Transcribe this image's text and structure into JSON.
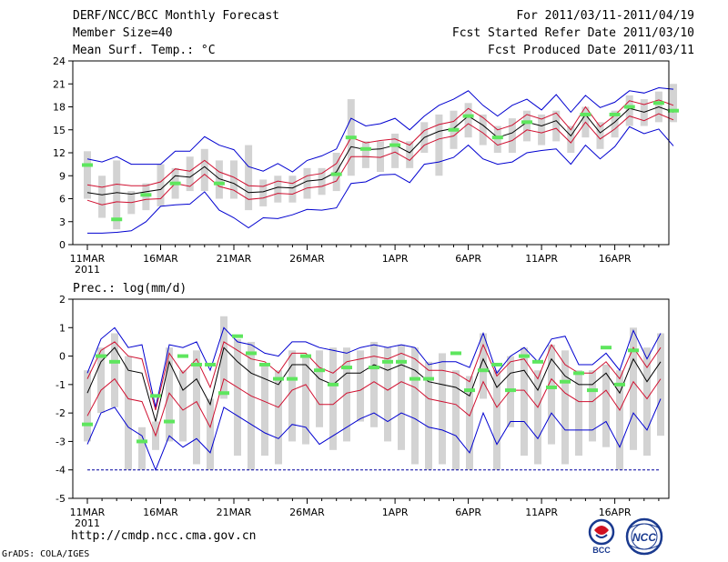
{
  "header": {
    "title": "DERF/NCC/BCC Monthly Forecast",
    "member_size": "Member Size=40",
    "period": "For 2011/03/11-2011/04/19",
    "fcst_started": "Fcst Started Refer Date 2011/03/10",
    "fcst_produced": "Fcst Produced Date 2011/03/11"
  },
  "footer": {
    "url": "http://cmdp.ncc.cma.gov.cn",
    "grads": "GrADS: COLA/IGES",
    "logo_bcc": "BCC",
    "logo_ncc": "NCC"
  },
  "colors": {
    "mean": "#000000",
    "spread": "#d01030",
    "extreme": "#0000d0",
    "box": "#d3d3d3",
    "obs": "#5ee65e",
    "floor": "#0000a0"
  },
  "chart_data": [
    {
      "type": "line",
      "title": "Mean Surf. Temp.: °C",
      "ylim": [
        0,
        24
      ],
      "yticks": [
        0,
        3,
        6,
        9,
        12,
        15,
        18,
        21,
        24
      ],
      "x_tick_labels": [
        "11MAR",
        "16MAR",
        "21MAR",
        "26MAR",
        "1APR",
        "6APR",
        "11APR",
        "16APR"
      ],
      "x_tick_days": [
        0,
        5,
        10,
        15,
        21,
        26,
        31,
        36
      ],
      "x_year_label": "2011",
      "series": [
        {
          "name": "ensemble mean",
          "values": [
            6.8,
            6.5,
            6.8,
            6.6,
            6.9,
            7.2,
            9.0,
            8.8,
            10.2,
            8.6,
            8.0,
            6.8,
            6.9,
            7.5,
            7.4,
            8.3,
            8.5,
            9.5,
            12.8,
            12.4,
            12.5,
            13.0,
            12.0,
            14.0,
            14.8,
            15.2,
            16.8,
            15.6,
            14.0,
            14.6,
            16.0,
            15.5,
            16.2,
            14.2,
            17.0,
            14.6,
            16.0,
            17.8,
            17.3,
            18.0,
            17.3
          ]
        },
        {
          "name": "upper spread",
          "values": [
            7.8,
            7.5,
            7.9,
            7.7,
            7.7,
            8.2,
            9.9,
            9.6,
            11.0,
            9.5,
            8.8,
            7.7,
            7.6,
            8.3,
            8.0,
            9.0,
            9.3,
            10.6,
            14.0,
            13.3,
            13.6,
            13.8,
            13.0,
            14.9,
            15.7,
            16.1,
            17.8,
            16.6,
            15.0,
            15.6,
            17.0,
            16.4,
            17.2,
            15.0,
            18.0,
            15.4,
            16.9,
            18.8,
            18.3,
            18.9,
            18.2
          ]
        },
        {
          "name": "lower spread",
          "values": [
            5.8,
            5.2,
            5.6,
            5.5,
            5.9,
            6.0,
            8.0,
            7.6,
            9.2,
            7.6,
            7.1,
            5.9,
            6.1,
            6.7,
            6.6,
            7.4,
            7.6,
            8.3,
            11.5,
            11.5,
            11.4,
            12.1,
            11.0,
            13.0,
            13.8,
            14.2,
            15.8,
            14.6,
            13.0,
            13.6,
            15.0,
            14.6,
            15.2,
            13.3,
            16.0,
            13.8,
            15.1,
            16.8,
            16.2,
            17.1,
            16.3
          ]
        },
        {
          "name": "ensemble max",
          "values": [
            11.2,
            10.8,
            11.5,
            10.5,
            10.5,
            10.5,
            12.2,
            12.2,
            14.1,
            13.0,
            12.4,
            10.2,
            9.6,
            10.6,
            9.5,
            11.0,
            11.6,
            12.5,
            16.5,
            15.5,
            15.8,
            16.5,
            15.0,
            16.8,
            18.2,
            19.0,
            20.1,
            18.2,
            16.8,
            18.2,
            19.0,
            17.6,
            19.6,
            17.3,
            19.5,
            17.9,
            18.6,
            20.1,
            19.8,
            20.5,
            20.3
          ]
        },
        {
          "name": "ensemble min",
          "values": [
            1.5,
            1.5,
            1.6,
            1.8,
            3.0,
            5.0,
            5.2,
            5.3,
            6.9,
            4.5,
            3.5,
            2.2,
            3.5,
            3.4,
            3.9,
            4.6,
            4.5,
            4.8,
            8.0,
            8.2,
            9.1,
            9.2,
            8.1,
            10.5,
            10.8,
            11.4,
            13.0,
            11.2,
            10.5,
            10.8,
            12.0,
            12.3,
            12.5,
            10.5,
            13.0,
            11.2,
            12.8,
            15.4,
            14.5,
            15.1,
            12.9
          ]
        },
        {
          "name": "box upper",
          "values": [
            12.2,
            9.0,
            11.0,
            7.0,
            8.0,
            10.5,
            10.0,
            11.5,
            12.5,
            11.0,
            11.0,
            13.0,
            8.5,
            9.0,
            9.0,
            10.0,
            10.0,
            12.0,
            19.0,
            13.5,
            13.5,
            14.5,
            13.5,
            16.0,
            17.0,
            17.5,
            18.5,
            17.0,
            15.5,
            16.5,
            17.5,
            17.0,
            17.5,
            15.5,
            18.0,
            16.0,
            17.5,
            19.5,
            19.0,
            20.0,
            21.0
          ]
        },
        {
          "name": "box lower",
          "values": [
            6.0,
            3.5,
            2.0,
            4.0,
            4.5,
            5.0,
            6.0,
            7.0,
            7.0,
            6.0,
            6.0,
            4.5,
            5.0,
            5.5,
            5.5,
            6.0,
            6.5,
            7.0,
            9.0,
            10.0,
            9.5,
            10.0,
            10.0,
            12.0,
            9.0,
            12.5,
            14.0,
            13.0,
            12.0,
            12.0,
            13.5,
            13.0,
            13.5,
            12.0,
            14.0,
            12.5,
            14.0,
            15.5,
            15.5,
            16.0,
            16.0
          ]
        },
        {
          "name": "observed",
          "values": [
            10.4,
            null,
            3.3,
            null,
            6.5,
            null,
            8.0,
            null,
            null,
            8.0,
            null,
            null,
            null,
            null,
            null,
            null,
            null,
            9.2,
            14.0,
            12.5,
            null,
            13.0,
            null,
            null,
            null,
            15.0,
            16.8,
            null,
            14.0,
            null,
            16.0,
            null,
            null,
            null,
            17.0,
            null,
            17.0,
            18.0,
            null,
            18.5,
            17.5
          ]
        }
      ]
    },
    {
      "type": "line",
      "title": "Prec.: log(mm/d)",
      "ylim": [
        -5,
        2
      ],
      "yticks": [
        -5,
        -4,
        -3,
        -2,
        -1,
        0,
        1,
        2
      ],
      "x_tick_labels": [
        "11MAR",
        "16MAR",
        "21MAR",
        "26MAR",
        "1APR",
        "6APR",
        "11APR",
        "16APR"
      ],
      "x_tick_days": [
        0,
        5,
        10,
        15,
        21,
        26,
        31,
        36
      ],
      "x_year_label": "2011",
      "series": [
        {
          "name": "ensemble mean",
          "values": [
            -1.3,
            -0.2,
            0.3,
            -0.5,
            -0.6,
            -2.3,
            -0.2,
            -1.2,
            -0.8,
            -1.7,
            0.3,
            -0.2,
            -0.6,
            -0.8,
            -1.0,
            -0.3,
            -0.3,
            -0.8,
            -1.0,
            -0.6,
            -0.6,
            -0.3,
            -0.5,
            -0.3,
            -0.5,
            -0.9,
            -1.0,
            -1.1,
            -1.4,
            -0.1,
            -1.1,
            -0.6,
            -0.5,
            -1.2,
            -0.1,
            -0.7,
            -1.0,
            -1.0,
            -0.6,
            -1.3,
            -0.1,
            -0.9,
            -0.2
          ]
        },
        {
          "name": "upper spread",
          "values": [
            -0.8,
            0.2,
            0.5,
            0.0,
            -0.1,
            -1.9,
            0.1,
            -0.6,
            -0.1,
            -1.1,
            0.5,
            0.2,
            -0.1,
            -0.2,
            -0.6,
            0.1,
            0.1,
            -0.4,
            -0.6,
            -0.2,
            -0.1,
            0.0,
            -0.1,
            0.1,
            -0.1,
            -0.5,
            -0.5,
            -0.6,
            -0.9,
            0.4,
            -0.7,
            -0.2,
            -0.1,
            -0.8,
            0.4,
            -0.3,
            -0.6,
            -0.6,
            -0.2,
            -0.8,
            0.3,
            -0.4,
            0.3
          ]
        },
        {
          "name": "lower spread",
          "values": [
            -2.1,
            -1.2,
            -0.8,
            -1.5,
            -1.6,
            -2.8,
            -1.3,
            -1.9,
            -1.6,
            -2.5,
            -0.8,
            -1.1,
            -1.4,
            -1.6,
            -1.8,
            -1.2,
            -1.0,
            -1.7,
            -1.7,
            -1.3,
            -1.2,
            -0.9,
            -1.2,
            -0.9,
            -1.1,
            -1.5,
            -1.6,
            -1.7,
            -2.1,
            -0.9,
            -1.8,
            -1.2,
            -1.2,
            -1.8,
            -0.8,
            -1.3,
            -1.6,
            -1.6,
            -1.2,
            -1.9,
            -0.9,
            -1.5,
            -0.8
          ]
        },
        {
          "name": "ensemble max",
          "values": [
            -0.6,
            0.6,
            1.0,
            0.3,
            0.4,
            -1.8,
            0.4,
            0.3,
            0.5,
            -0.5,
            1.0,
            0.5,
            0.4,
            0.1,
            0.0,
            0.5,
            0.5,
            0.3,
            0.2,
            0.1,
            0.3,
            0.4,
            0.3,
            0.4,
            0.3,
            -0.3,
            -0.2,
            -0.2,
            -0.4,
            0.8,
            -0.6,
            0.0,
            0.3,
            -0.2,
            0.6,
            0.7,
            -0.3,
            -0.3,
            0.1,
            -0.5,
            0.9,
            -0.1,
            0.8
          ]
        },
        {
          "name": "ensemble min",
          "values": [
            -3.1,
            -2.0,
            -1.8,
            -2.5,
            -2.8,
            -4.0,
            -2.8,
            -3.2,
            -2.9,
            -3.4,
            -1.8,
            -2.1,
            -2.4,
            -2.7,
            -2.9,
            -2.4,
            -2.5,
            -3.1,
            -2.8,
            -2.5,
            -2.2,
            -2.0,
            -2.3,
            -2.0,
            -2.2,
            -2.5,
            -2.6,
            -2.8,
            -3.4,
            -2.0,
            -3.1,
            -2.3,
            -2.3,
            -2.9,
            -2.0,
            -2.6,
            -2.6,
            -2.6,
            -2.3,
            -3.2,
            -2.0,
            -2.6,
            -1.5
          ]
        },
        {
          "name": "box upper",
          "values": [
            -0.5,
            0.3,
            0.8,
            0.0,
            -2.5,
            -2.3,
            0.3,
            -0.5,
            0.2,
            -1.5,
            1.4,
            0.6,
            0.5,
            -0.3,
            -0.5,
            0.2,
            0.0,
            0.2,
            0.3,
            0.3,
            0.2,
            0.5,
            0.3,
            0.4,
            0.3,
            -0.2,
            0.1,
            -0.5,
            -0.7,
            0.8,
            -0.5,
            0.0,
            0.3,
            -0.5,
            0.4,
            0.2,
            -0.5,
            -0.5,
            -0.3,
            -0.5,
            1.0,
            0.3,
            0.8
          ]
        },
        {
          "name": "box lower",
          "values": [
            -3.0,
            -2.0,
            -1.8,
            -4.0,
            -4.0,
            -3.3,
            -3.0,
            -3.0,
            -3.8,
            -4.0,
            -1.5,
            -3.5,
            -4.0,
            -3.5,
            -3.8,
            -3.0,
            -3.1,
            -2.5,
            -3.3,
            -3.0,
            -2.3,
            -2.5,
            -3.0,
            -3.3,
            -3.8,
            -4.0,
            -3.8,
            -4.0,
            -4.0,
            -1.5,
            -4.0,
            -2.5,
            -3.5,
            -3.8,
            -3.1,
            -3.8,
            -3.5,
            -3.0,
            -3.2,
            -4.0,
            -3.3,
            -3.5,
            -2.8
          ]
        },
        {
          "name": "observed",
          "values": [
            -2.4,
            0.0,
            -0.2,
            null,
            -3.0,
            -1.4,
            -2.3,
            0.0,
            -0.3,
            -0.3,
            -1.3,
            0.7,
            0.1,
            -0.3,
            -0.8,
            -0.8,
            0.0,
            -0.5,
            -1.0,
            -0.4,
            null,
            -0.4,
            -0.2,
            -0.2,
            -0.8,
            -0.8,
            null,
            0.1,
            -1.2,
            -0.5,
            -0.3,
            -1.2,
            0.0,
            -0.2,
            -1.1,
            -0.9,
            -0.6,
            -1.2,
            0.3,
            -1.0,
            0.2,
            null,
            null
          ]
        }
      ],
      "floor_value": -4
    }
  ]
}
